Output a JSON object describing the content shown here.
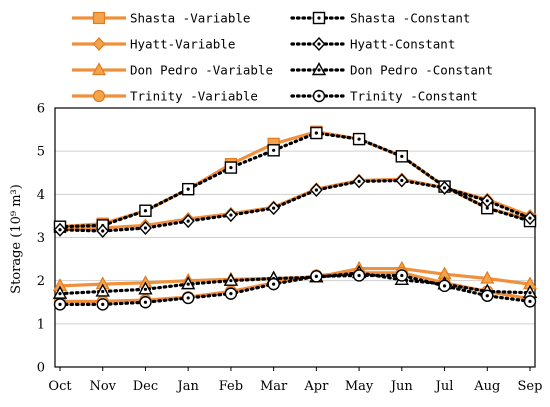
{
  "chart_data": {
    "type": "line",
    "title": "",
    "xlabel": "",
    "ylabel": "Storage (10⁹ m³)",
    "ylim": [
      0,
      6
    ],
    "yticks": [
      0,
      1,
      2,
      3,
      4,
      5,
      6
    ],
    "grid": "horizontal",
    "legend_placement": "top, two columns",
    "categories": [
      "Oct",
      "Nov",
      "Dec",
      "Jan",
      "Feb",
      "Mar",
      "Apr",
      "May",
      "Jun",
      "Jul",
      "Aug",
      "Sep"
    ],
    "series": [
      {
        "name": "Shasta -Variable",
        "style": "variable",
        "marker": "square",
        "color": "#F4A34A",
        "values": [
          3.25,
          3.32,
          3.62,
          4.12,
          4.7,
          5.17,
          5.45,
          5.28,
          4.88,
          4.18,
          3.68,
          3.42
        ]
      },
      {
        "name": "Hyatt-Variable",
        "style": "variable",
        "marker": "diamond",
        "color": "#F4A34A",
        "values": [
          3.18,
          3.22,
          3.28,
          3.43,
          3.55,
          3.7,
          4.12,
          4.32,
          4.35,
          4.15,
          3.88,
          3.5
        ]
      },
      {
        "name": "Don Pedro -Variable",
        "style": "variable",
        "marker": "triangle",
        "color": "#F4A34A",
        "values": [
          1.88,
          1.92,
          1.95,
          2.0,
          2.03,
          2.05,
          2.08,
          2.28,
          2.28,
          2.15,
          2.05,
          1.92
        ]
      },
      {
        "name": "Trinity -Variable",
        "style": "variable",
        "marker": "circle",
        "color": "#F4A34A",
        "values": [
          1.52,
          1.52,
          1.55,
          1.62,
          1.75,
          1.95,
          2.12,
          2.18,
          2.18,
          1.95,
          1.75,
          1.58
        ]
      },
      {
        "name": "Shasta -Constant",
        "style": "constant",
        "marker": "square",
        "color": "#000000",
        "values": [
          3.25,
          3.28,
          3.62,
          4.12,
          4.62,
          5.02,
          5.42,
          5.28,
          4.88,
          4.18,
          3.68,
          3.38
        ]
      },
      {
        "name": "Hyatt-Constant",
        "style": "constant",
        "marker": "diamond",
        "color": "#000000",
        "values": [
          3.18,
          3.15,
          3.22,
          3.38,
          3.52,
          3.68,
          4.1,
          4.3,
          4.32,
          4.15,
          3.85,
          3.45
        ]
      },
      {
        "name": "Don Pedro -Constant",
        "style": "constant",
        "marker": "triangle",
        "color": "#000000",
        "values": [
          1.7,
          1.75,
          1.8,
          1.92,
          2.0,
          2.05,
          2.08,
          2.18,
          2.02,
          1.92,
          1.75,
          1.72
        ]
      },
      {
        "name": "Trinity -Constant",
        "style": "constant",
        "marker": "circle",
        "color": "#000000",
        "values": [
          1.45,
          1.45,
          1.5,
          1.6,
          1.7,
          1.92,
          2.1,
          2.12,
          2.12,
          1.88,
          1.65,
          1.52
        ]
      }
    ],
    "legend_order": [
      0,
      4,
      1,
      5,
      2,
      6,
      3,
      7
    ]
  }
}
